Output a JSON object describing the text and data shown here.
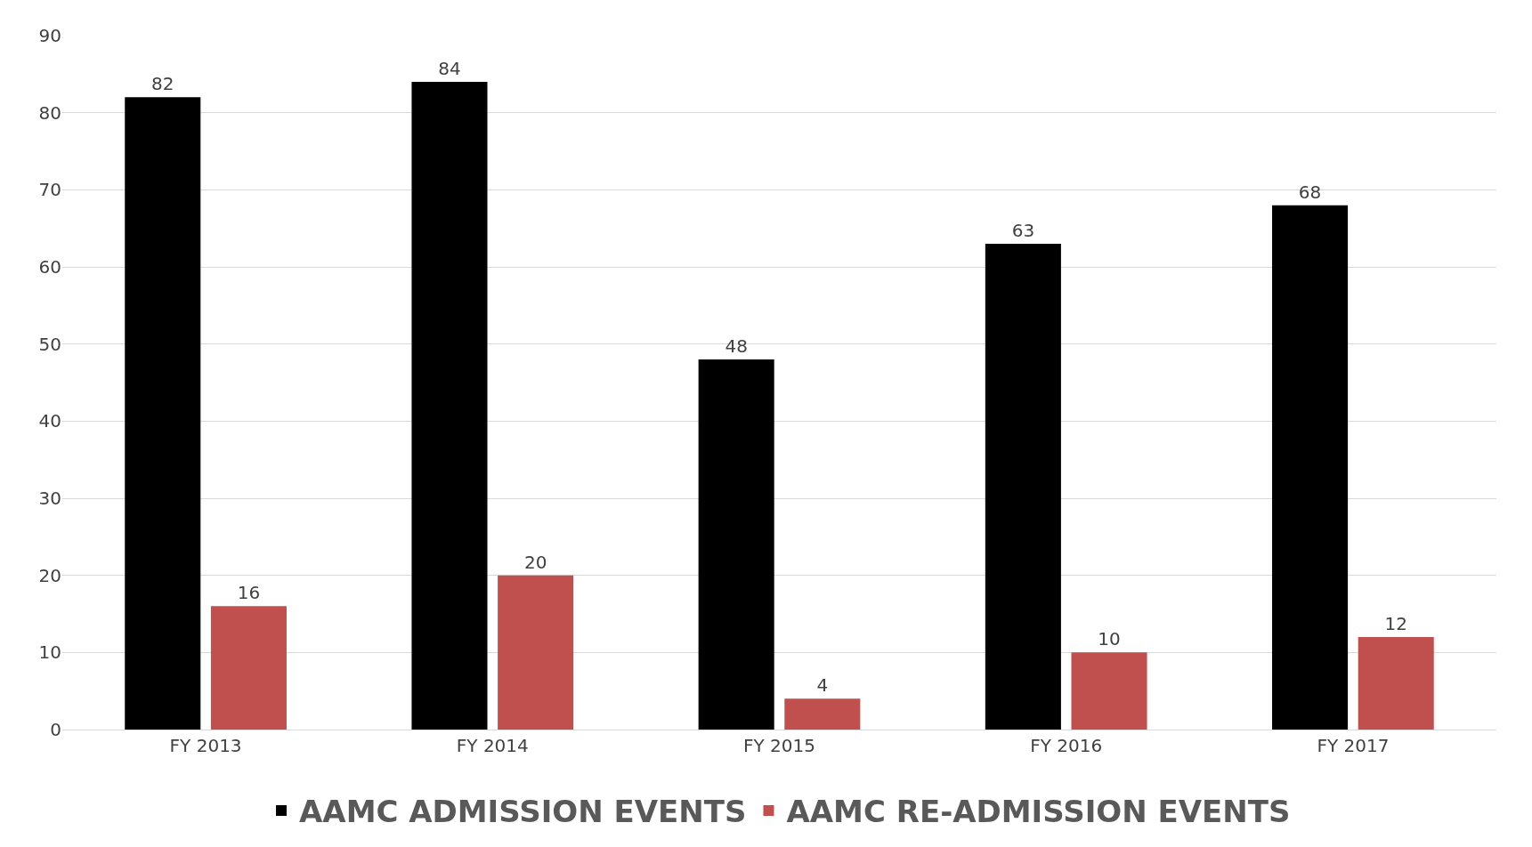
{
  "chart_data": {
    "type": "bar",
    "categories": [
      "FY 2013",
      "FY 2014",
      "FY 2015",
      "FY 2016",
      "FY 2017"
    ],
    "series": [
      {
        "name": "AAMC ADMISSION EVENTS",
        "color": "#000000",
        "values": [
          82,
          84,
          48,
          63,
          68
        ]
      },
      {
        "name": "AAMC RE-ADMISSION EVENTS",
        "color": "#c0504d",
        "values": [
          16,
          20,
          4,
          10,
          12
        ]
      }
    ],
    "ylim": [
      0,
      90
    ],
    "yticks": [
      0,
      10,
      20,
      30,
      40,
      50,
      60,
      70,
      80,
      90
    ],
    "grid": "y",
    "legend": "bottom",
    "data_labels": true
  }
}
